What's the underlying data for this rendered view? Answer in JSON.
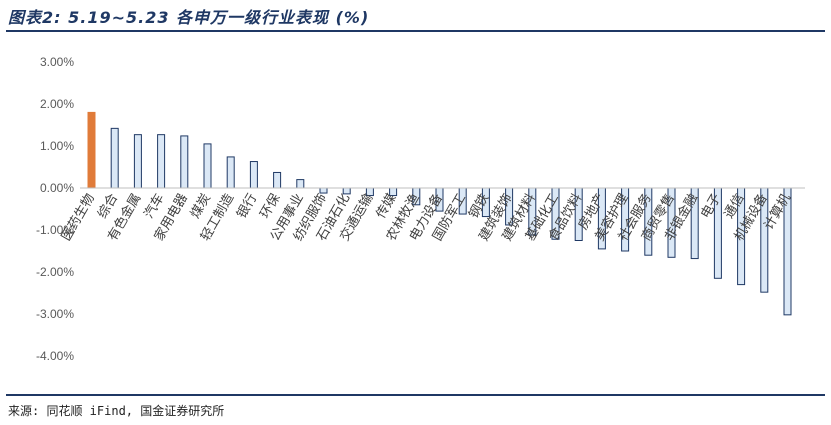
{
  "header": {
    "title": "图表2: 5.19~5.23 各申万一级行业表现 (%)"
  },
  "footer": {
    "source": "来源: 同花顺 iFind, 国金证券研究所"
  },
  "colors": {
    "highlight": "#e07b39",
    "bar_fill": "#dbe8f6",
    "bar_stroke": "#1f3864",
    "axis": "#bfbfbf",
    "tick_text": "#595959"
  },
  "chart_data": {
    "type": "bar",
    "title": "图表2: 5.19~5.23 各申万一级行业表现 (%)",
    "xlabel": "",
    "ylabel": "",
    "ylim": [
      -4,
      3
    ],
    "yticks": [
      3,
      2,
      1,
      0,
      -1,
      -2,
      -3,
      -4
    ],
    "ytick_labels": [
      "3.00%",
      "2.00%",
      "1.00%",
      "0.00%",
      "-1.00%",
      "-2.00%",
      "-3.00%",
      "-4.00%"
    ],
    "grid": false,
    "categories": [
      "医药生物",
      "综合",
      "有色金属",
      "汽车",
      "家用电器",
      "煤炭",
      "轻工制造",
      "银行",
      "环保",
      "公用事业",
      "纺织服饰",
      "石油石化",
      "交通运输",
      "传媒",
      "农林牧渔",
      "电力设备",
      "国防军工",
      "钢铁",
      "建筑装饰",
      "建筑材料",
      "基础化工",
      "食品饮料",
      "房地产",
      "美容护理",
      "社会服务",
      "商贸零售",
      "非银金融",
      "电子",
      "通信",
      "机械设备",
      "计算机"
    ],
    "values": [
      1.8,
      1.42,
      1.27,
      1.27,
      1.24,
      1.05,
      0.74,
      0.63,
      0.37,
      0.2,
      -0.12,
      -0.14,
      -0.18,
      -0.18,
      -0.4,
      -0.55,
      -0.62,
      -0.68,
      -0.88,
      -1.12,
      -1.22,
      -1.25,
      -1.45,
      -1.5,
      -1.6,
      -1.65,
      -1.68,
      -2.15,
      -2.3,
      -2.48,
      -3.02
    ],
    "highlight_index": 0
  }
}
